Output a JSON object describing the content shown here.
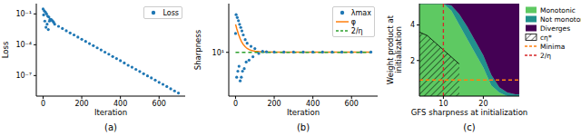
{
  "chart_data": [
    {
      "type": "scatter",
      "title": "(a)",
      "x_label": "Iteration",
      "y_label": "Loss",
      "x": [
        0,
        3,
        6,
        9,
        12,
        15,
        18,
        21,
        24,
        27,
        30,
        33,
        36,
        40,
        45,
        50,
        55,
        60,
        80,
        100,
        120,
        140,
        160,
        180,
        200,
        220,
        240,
        260,
        280,
        300,
        320,
        340,
        360,
        380,
        400,
        420,
        440,
        460,
        480,
        500,
        520,
        540,
        560,
        580,
        600,
        620,
        640,
        660,
        680,
        700
      ],
      "series": [
        {
          "name": "Loss",
          "color": "#1f77b4",
          "marker": "o",
          "values": [
            0.3,
            0.08,
            0.2,
            0.02,
            0.15,
            0.005,
            0.1,
            0.01,
            0.06,
            0.003,
            0.05,
            0.02,
            0.03,
            0.03,
            0.025,
            0.02,
            0.015,
            0.01,
            0.0062,
            0.0038,
            0.0023,
            0.0014,
            0.0009,
            0.00055,
            0.00034,
            0.00021,
            0.00013,
            8.1e-05,
            5e-05,
            3.1e-05,
            1.9e-05,
            1.2e-05,
            7.2e-06,
            4.5e-06,
            2.8e-06,
            1.7e-06,
            1e-06,
            6.5e-07,
            4e-07,
            2.5e-07,
            1.5e-07,
            9.4e-08,
            5.9e-08,
            3.6e-08,
            2.2e-08,
            1.4e-08,
            8.5e-09,
            5.2e-09,
            3.2e-09,
            2e-09
          ]
        }
      ],
      "xlim": [
        -35,
        735
      ],
      "xticks": [
        0,
        200,
        400,
        600
      ],
      "ylim": [
        1e-09,
        1
      ],
      "yticks": [
        {
          "value": 0.1,
          "label": "10⁻¹"
        },
        {
          "value": 0.0001,
          "label": "10⁻⁴"
        },
        {
          "value": 1e-07,
          "label": "10⁻⁷"
        }
      ],
      "log": "y",
      "legend": "upper right"
    },
    {
      "type": "line",
      "title": "(b)",
      "x_label": "Iteration",
      "y_label": "Sharpness",
      "x": [
        0,
        3,
        6,
        9,
        12,
        15,
        18,
        21,
        24,
        27,
        30,
        33,
        36,
        40,
        45,
        50,
        55,
        60,
        70,
        80,
        90,
        100,
        120,
        140,
        160,
        200,
        250,
        300,
        350,
        400,
        450,
        500,
        550,
        600,
        650,
        700
      ],
      "series": [
        {
          "name": "λmax",
          "type": "scatter",
          "color": "#1f77b4",
          "marker": "o",
          "values": [
            20,
            40,
            4,
            36,
            5,
            32,
            6,
            28,
            3.5,
            25,
            4,
            22,
            5,
            19,
            5.5,
            16,
            7,
            14,
            7.5,
            12.5,
            8.5,
            11.5,
            9.6,
            10.4,
            10.2,
            10.1,
            10.1,
            10.1,
            10.1,
            10.1,
            10.1,
            10.1,
            10.1,
            10.1,
            10.1,
            10.1
          ]
        },
        {
          "name": "φ",
          "type": "line",
          "color": "#ff7f0e",
          "line_style": "solid",
          "values": [
            28,
            26,
            24,
            22.5,
            21,
            19.5,
            18.5,
            17.5,
            16.5,
            15.8,
            15,
            14.5,
            14,
            13.3,
            12.8,
            12.3,
            11.9,
            11.6,
            11.1,
            10.8,
            10.6,
            10.45,
            10.3,
            10.2,
            10.15,
            10.1,
            10.1,
            10.1,
            10.1,
            10.1,
            10.1,
            10.1,
            10.1,
            10.1,
            10.1,
            10.1
          ]
        },
        {
          "name": "2/η",
          "type": "line",
          "color": "#2ca02c",
          "line_style": "dashed",
          "values": [
            10,
            10,
            10,
            10,
            10,
            10,
            10,
            10,
            10,
            10,
            10,
            10,
            10,
            10,
            10,
            10,
            10,
            10,
            10,
            10,
            10,
            10,
            10,
            10,
            10,
            10,
            10,
            10,
            10,
            10,
            10,
            10,
            10,
            10,
            10,
            10
          ]
        }
      ],
      "xlim": [
        -35,
        735
      ],
      "xticks": [
        0,
        200,
        400,
        600
      ],
      "ylim": [
        2,
        60
      ],
      "yticks": [
        {
          "value": 10,
          "label": "10¹"
        }
      ],
      "log": "y",
      "legend": "upper right"
    },
    {
      "type": "area",
      "title": "(c)",
      "x_label": "GFS sharpness at initialization",
      "y_label": "Weight product at initialization",
      "x": [
        4,
        6,
        8,
        10,
        12,
        14,
        16,
        18,
        20,
        22,
        24,
        26,
        28,
        29
      ],
      "stacked": true,
      "series": [
        {
          "name": "Monotonic",
          "color": "#5ec962",
          "values": [
            5.2,
            5.2,
            5.2,
            5.2,
            4.8,
            4.0,
            3.2,
            2.4,
            1.6,
            0.6,
            0.2,
            0,
            0,
            0
          ]
        },
        {
          "name": "Not monotonic",
          "color": "#21918c",
          "values": [
            0,
            0,
            0,
            0,
            0.3,
            0.6,
            0.7,
            0.7,
            0.7,
            0.6,
            0.3,
            0.2,
            0.1,
            0.1
          ]
        },
        {
          "name": "Diverges",
          "color": "#440154",
          "values": [
            0,
            0,
            0,
            0,
            0.1,
            0.6,
            1.3,
            2.1,
            2.9,
            4.0,
            4.7,
            5.0,
            5.1,
            5.1
          ]
        },
        {
          "name": "cη*",
          "type": "hatch",
          "color": "#000000",
          "values": [
            3.6,
            3.4,
            3.0,
            2.6,
            2.2,
            1.8,
            null,
            null,
            null,
            null,
            null,
            null,
            null,
            null
          ]
        },
        {
          "name": "Minima",
          "type": "line",
          "color": "#ff7f0e",
          "line_style": "dashed",
          "values": [
            0.9,
            0.9,
            0.9,
            0.9,
            0.9,
            0.9,
            0.9,
            0.9,
            0.9,
            0.9,
            0.9,
            0.9,
            0.9,
            0.9
          ]
        },
        {
          "name": "2/η",
          "type": "line",
          "color": "#d62728",
          "line_style": "dashed",
          "x": [
            10,
            10
          ],
          "values": [
            0,
            5.2
          ]
        }
      ],
      "xlim": [
        4,
        29
      ],
      "xticks": [
        10,
        20
      ],
      "ylim": [
        0,
        5.2
      ],
      "yticks": [
        2,
        4
      ],
      "legend": "right"
    }
  ]
}
